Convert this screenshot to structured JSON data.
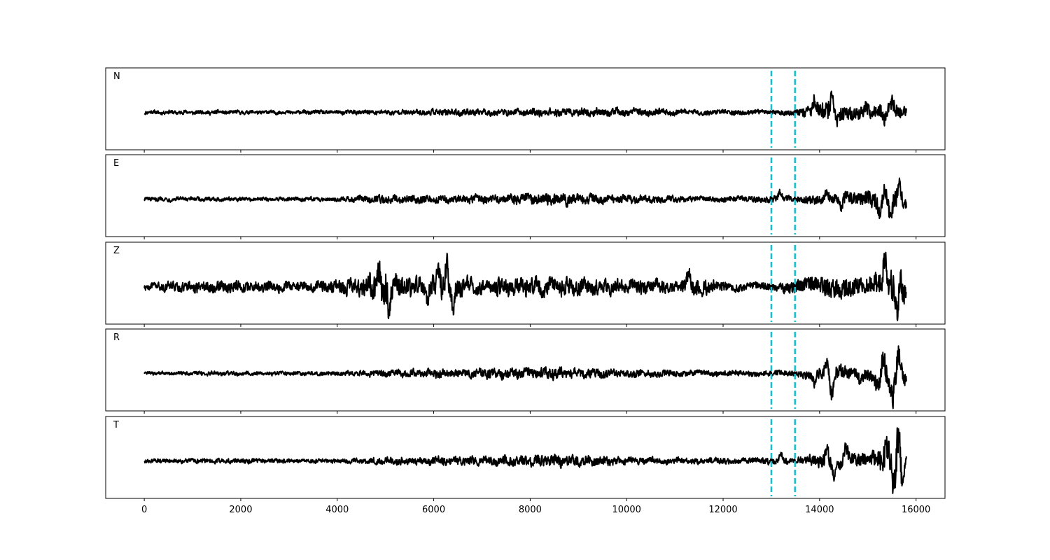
{
  "chart_data": {
    "type": "line",
    "layout": "stacked-panels",
    "shared_x_axis": true,
    "xlim": [
      -800,
      16600
    ],
    "xticks": [
      0,
      2000,
      4000,
      6000,
      8000,
      10000,
      12000,
      14000,
      16000
    ],
    "x_range": [
      0,
      15800
    ],
    "y_ticks_visible": false,
    "grid": false,
    "legend": "none",
    "markers": {
      "x": [
        13000,
        13490
      ],
      "style": "dashed",
      "color": "#17becf"
    },
    "series_color": "#000000",
    "panels": [
      {
        "label": "N",
        "ylim": [
          -1,
          1
        ],
        "envelope": [
          [
            0,
            0.09
          ],
          [
            1000,
            0.1
          ],
          [
            2000,
            0.09
          ],
          [
            3000,
            0.09
          ],
          [
            4000,
            0.1
          ],
          [
            4500,
            0.11
          ],
          [
            5500,
            0.12
          ],
          [
            6500,
            0.17
          ],
          [
            7500,
            0.14
          ],
          [
            8500,
            0.19
          ],
          [
            9500,
            0.18
          ],
          [
            10500,
            0.16
          ],
          [
            11500,
            0.12
          ],
          [
            12500,
            0.12
          ],
          [
            13000,
            0.1
          ],
          [
            13500,
            0.14
          ],
          [
            13900,
            0.42
          ],
          [
            14200,
            0.46
          ],
          [
            14500,
            0.34
          ],
          [
            15000,
            0.34
          ],
          [
            15300,
            0.38
          ],
          [
            15500,
            0.38
          ],
          [
            15800,
            0.28
          ]
        ],
        "peaks": [
          [
            13900,
            0.45
          ],
          [
            14250,
            0.54
          ],
          [
            14380,
            -0.35
          ],
          [
            14950,
            0.3
          ],
          [
            15350,
            -0.42
          ],
          [
            15500,
            0.37
          ],
          [
            15700,
            -0.22
          ]
        ]
      },
      {
        "label": "E",
        "ylim": [
          -1,
          1
        ],
        "envelope": [
          [
            0,
            0.07
          ],
          [
            1000,
            0.07
          ],
          [
            2000,
            0.06
          ],
          [
            3000,
            0.06
          ],
          [
            4000,
            0.07
          ],
          [
            4700,
            0.13
          ],
          [
            5500,
            0.13
          ],
          [
            6500,
            0.12
          ],
          [
            7500,
            0.14
          ],
          [
            8500,
            0.2
          ],
          [
            9500,
            0.15
          ],
          [
            10500,
            0.12
          ],
          [
            11500,
            0.09
          ],
          [
            12500,
            0.09
          ],
          [
            13000,
            0.12
          ],
          [
            13500,
            0.1
          ],
          [
            14000,
            0.17
          ],
          [
            14500,
            0.22
          ],
          [
            15000,
            0.26
          ],
          [
            15300,
            0.32
          ],
          [
            15500,
            0.45
          ],
          [
            15700,
            0.3
          ],
          [
            15800,
            0.15
          ]
        ],
        "peaks": [
          [
            13180,
            0.17
          ],
          [
            14150,
            0.27
          ],
          [
            14450,
            -0.26
          ],
          [
            15000,
            0.18
          ],
          [
            15250,
            -0.28
          ],
          [
            15350,
            0.3
          ],
          [
            15480,
            -0.42
          ],
          [
            15650,
            0.54
          ],
          [
            15800,
            -0.12
          ]
        ]
      },
      {
        "label": "Z",
        "ylim": [
          -1,
          1
        ],
        "envelope": [
          [
            0,
            0.07
          ],
          [
            500,
            0.13
          ],
          [
            1500,
            0.15
          ],
          [
            2500,
            0.13
          ],
          [
            3500,
            0.14
          ],
          [
            4500,
            0.22
          ],
          [
            4800,
            0.4
          ],
          [
            5000,
            0.5
          ],
          [
            5300,
            0.3
          ],
          [
            5800,
            0.22
          ],
          [
            6200,
            0.38
          ],
          [
            6800,
            0.22
          ],
          [
            7500,
            0.22
          ],
          [
            8500,
            0.24
          ],
          [
            9500,
            0.2
          ],
          [
            10500,
            0.18
          ],
          [
            11000,
            0.12
          ],
          [
            11300,
            0.28
          ],
          [
            12000,
            0.13
          ],
          [
            12500,
            0.1
          ],
          [
            13000,
            0.1
          ],
          [
            13500,
            0.18
          ],
          [
            14000,
            0.24
          ],
          [
            14500,
            0.3
          ],
          [
            15000,
            0.24
          ],
          [
            15300,
            0.36
          ],
          [
            15600,
            0.46
          ],
          [
            15800,
            0.45
          ]
        ],
        "peaks": [
          [
            4850,
            0.5
          ],
          [
            4980,
            -0.62
          ],
          [
            5020,
            0.66
          ],
          [
            5060,
            -0.88
          ],
          [
            5200,
            0.28
          ],
          [
            5850,
            -0.28
          ],
          [
            6100,
            0.38
          ],
          [
            6270,
            0.55
          ],
          [
            6400,
            -0.5
          ],
          [
            11300,
            0.38
          ],
          [
            15350,
            0.58
          ],
          [
            15600,
            -0.55
          ],
          [
            15780,
            -0.58
          ],
          [
            15800,
            0.42
          ]
        ]
      },
      {
        "label": "R",
        "ylim": [
          -1,
          1
        ],
        "envelope": [
          [
            0,
            0.07
          ],
          [
            1000,
            0.08
          ],
          [
            2000,
            0.09
          ],
          [
            3000,
            0.08
          ],
          [
            4000,
            0.09
          ],
          [
            4500,
            0.12
          ],
          [
            5500,
            0.16
          ],
          [
            6500,
            0.18
          ],
          [
            7500,
            0.2
          ],
          [
            8500,
            0.24
          ],
          [
            9500,
            0.18
          ],
          [
            10500,
            0.14
          ],
          [
            11500,
            0.12
          ],
          [
            12500,
            0.12
          ],
          [
            13000,
            0.12
          ],
          [
            13500,
            0.12
          ],
          [
            14000,
            0.3
          ],
          [
            14300,
            0.35
          ],
          [
            14700,
            0.3
          ],
          [
            15000,
            0.25
          ],
          [
            15300,
            0.55
          ],
          [
            15600,
            0.55
          ],
          [
            15800,
            0.3
          ]
        ],
        "peaks": [
          [
            13900,
            -0.3
          ],
          [
            14150,
            0.42
          ],
          [
            14250,
            -0.85
          ],
          [
            14850,
            -0.3
          ],
          [
            15200,
            -0.45
          ],
          [
            15320,
            0.76
          ],
          [
            15450,
            -0.3
          ],
          [
            15520,
            -0.9
          ],
          [
            15640,
            0.76
          ],
          [
            15800,
            -0.2
          ]
        ]
      },
      {
        "label": "T",
        "ylim": [
          -1,
          1
        ],
        "envelope": [
          [
            0,
            0.06
          ],
          [
            1000,
            0.07
          ],
          [
            2000,
            0.07
          ],
          [
            3000,
            0.06
          ],
          [
            4000,
            0.06
          ],
          [
            4700,
            0.1
          ],
          [
            5500,
            0.12
          ],
          [
            6500,
            0.12
          ],
          [
            7500,
            0.14
          ],
          [
            8500,
            0.18
          ],
          [
            9500,
            0.14
          ],
          [
            10500,
            0.1
          ],
          [
            11500,
            0.09
          ],
          [
            12500,
            0.09
          ],
          [
            13000,
            0.1
          ],
          [
            13500,
            0.1
          ],
          [
            14000,
            0.22
          ],
          [
            14500,
            0.25
          ],
          [
            15000,
            0.2
          ],
          [
            15300,
            0.45
          ],
          [
            15600,
            0.7
          ],
          [
            15800,
            0.15
          ]
        ],
        "peaks": [
          [
            13200,
            0.18
          ],
          [
            14150,
            0.42
          ],
          [
            14300,
            -0.45
          ],
          [
            14550,
            0.4
          ],
          [
            15300,
            -0.25
          ],
          [
            15380,
            0.48
          ],
          [
            15530,
            -0.4
          ],
          [
            15640,
            0.85
          ],
          [
            15720,
            -0.7
          ],
          [
            15800,
            0.1
          ]
        ]
      }
    ]
  }
}
